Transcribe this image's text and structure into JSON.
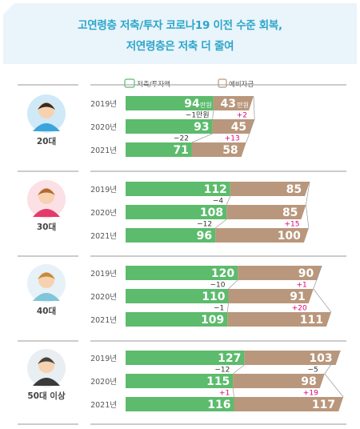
{
  "title": {
    "line1": "고연령층 저축/투자 코로나19 이전 수준 회복,",
    "line2": "저연령층은 저축 더 줄여"
  },
  "legend": {
    "savings": "저축/투자액",
    "reserve": "예비자금"
  },
  "colors": {
    "savings": "#5cbb6c",
    "reserve": "#b9977c",
    "neg": "#333333",
    "pos": "#e0007a",
    "divider": "#9a9a9a"
  },
  "chart_data": {
    "type": "bar",
    "subtype": "stacked-horizontal",
    "categories": [
      "20대",
      "30대",
      "40대",
      "50대 이상"
    ],
    "years": [
      "2019년",
      "2020년",
      "2021년"
    ],
    "unit": "만원",
    "series_names": [
      "저축/투자액",
      "예비자금"
    ],
    "groups": [
      {
        "age": "20대",
        "rows": [
          {
            "year": "2019년",
            "savings": 94,
            "reserve": 43
          },
          {
            "year": "2020년",
            "savings": 93,
            "reserve": 45
          },
          {
            "year": "2021년",
            "savings": 71,
            "reserve": 58
          }
        ],
        "changes": [
          {
            "savings": "−1만원",
            "reserve": "+2"
          },
          {
            "savings": "−22",
            "reserve": "+13"
          }
        ]
      },
      {
        "age": "30대",
        "rows": [
          {
            "year": "2019년",
            "savings": 112,
            "reserve": 85
          },
          {
            "year": "2020년",
            "savings": 108,
            "reserve": 85
          },
          {
            "year": "2021년",
            "savings": 96,
            "reserve": 100
          }
        ],
        "changes": [
          {
            "savings": "−4",
            "reserve": ""
          },
          {
            "savings": "−12",
            "reserve": "+15"
          }
        ]
      },
      {
        "age": "40대",
        "rows": [
          {
            "year": "2019년",
            "savings": 120,
            "reserve": 90
          },
          {
            "year": "2020년",
            "savings": 110,
            "reserve": 91
          },
          {
            "year": "2021년",
            "savings": 109,
            "reserve": 111
          }
        ],
        "changes": [
          {
            "savings": "−10",
            "reserve": "+1"
          },
          {
            "savings": "−1",
            "reserve": "+20"
          }
        ]
      },
      {
        "age": "50대 이상",
        "rows": [
          {
            "year": "2019년",
            "savings": 127,
            "reserve": 103
          },
          {
            "year": "2020년",
            "savings": 115,
            "reserve": 98
          },
          {
            "year": "2021년",
            "savings": 116,
            "reserve": 117
          }
        ],
        "changes": [
          {
            "savings": "−12",
            "reserve": "−5"
          },
          {
            "savings": "+1",
            "reserve": "+19"
          }
        ]
      }
    ]
  }
}
